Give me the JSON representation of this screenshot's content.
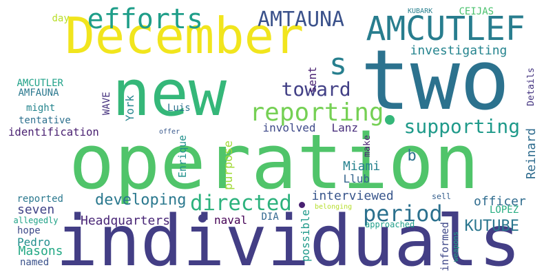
{
  "words": [
    {
      "text": "operation",
      "color": "#50c46a",
      "rot": 0
    },
    {
      "text": "individuals",
      "color": "#433e85",
      "rot": 0
    },
    {
      "text": "new",
      "color": "#35b779",
      "rot": 0
    },
    {
      "text": "two",
      "color": "#2c728e",
      "rot": 0
    },
    {
      "text": "December",
      "color": "#f1e51d",
      "rot": 0
    },
    {
      "text": "AMCUTLEF",
      "color": "#287d8e",
      "rot": 0
    },
    {
      "text": "efforts",
      "color": "#1f9e89",
      "rot": 0
    },
    {
      "text": "s",
      "color": "#277f8e",
      "rot": 0
    },
    {
      "text": "AMTAUNA",
      "color": "#3b528b",
      "rot": 0
    },
    {
      "text": "reporting",
      "color": "#75d054",
      "rot": 0
    },
    {
      "text": "supporting",
      "color": "#1f9a8a",
      "rot": 0
    },
    {
      "text": "toward",
      "color": "#424086",
      "rot": 0
    },
    {
      "text": "investigating",
      "color": "#25848e",
      "rot": 0
    },
    {
      "text": "period",
      "color": "#2c718e",
      "rot": 0
    },
    {
      "text": "directed",
      "color": "#2db27d",
      "rot": 0
    },
    {
      "text": "developing",
      "color": "#2a788e",
      "rot": 0
    },
    {
      "text": "b",
      "color": "#2c728e",
      "rot": 0
    },
    {
      "text": "KUTUBE",
      "color": "#2a768e",
      "rot": 0
    },
    {
      "text": "Miami",
      "color": "#26828e",
      "rot": 0
    },
    {
      "text": "Llub",
      "color": "#33638d",
      "rot": 0
    },
    {
      "text": "interviewed",
      "color": "#39568c",
      "rot": 0
    },
    {
      "text": "Headquarters",
      "color": "#482576",
      "rot": 0
    },
    {
      "text": "seven",
      "color": "#414487",
      "rot": 0
    },
    {
      "text": "Masons",
      "color": "#22a884",
      "rot": 0
    },
    {
      "text": "involved",
      "color": "#3e4989",
      "rot": 0
    },
    {
      "text": "Lanz",
      "color": "#472d7b",
      "rot": 0
    },
    {
      "text": "naval",
      "color": "#440154",
      "rot": 0
    },
    {
      "text": "AMCUTLER",
      "color": "#1fa188",
      "rot": 0
    },
    {
      "text": "AMFAUNA",
      "color": "#2a788e",
      "rot": 0
    },
    {
      "text": "identification",
      "color": "#481f70",
      "rot": 0
    },
    {
      "text": "tentative",
      "color": "#2d708e",
      "rot": 0
    },
    {
      "text": "might",
      "color": "#25858e",
      "rot": 0
    },
    {
      "text": "officer",
      "color": "#2f6c8e",
      "rot": 0
    },
    {
      "text": "LOPEZ",
      "color": "#26ad81",
      "rot": 0
    },
    {
      "text": "Pedro",
      "color": "#218e8d",
      "rot": 0
    },
    {
      "text": "hope",
      "color": "#3e4a89",
      "rot": 0
    },
    {
      "text": "named",
      "color": "#3b528b",
      "rot": 0
    },
    {
      "text": "reported",
      "color": "#2a788e",
      "rot": 0
    },
    {
      "text": "Luis",
      "color": "#2c728e",
      "rot": 0
    },
    {
      "text": "CEIJAS",
      "color": "#4ac16d",
      "rot": 0
    },
    {
      "text": "day",
      "color": "#b8de29",
      "rot": 0
    },
    {
      "text": "KUBARK",
      "color": "#277f8e",
      "rot": 0
    },
    {
      "text": "DIA",
      "color": "#31678e",
      "rot": 0
    },
    {
      "text": "allegedly",
      "color": "#1fa287",
      "rot": 0
    },
    {
      "text": "offer",
      "color": "#38588c",
      "rot": 0
    },
    {
      "text": "approached",
      "color": "#1f9e89",
      "rot": 0
    },
    {
      "text": "belonging",
      "color": "#b5de2b",
      "rot": 0
    },
    {
      "text": "sell",
      "color": "#355f8d",
      "rot": 0
    },
    {
      "text": "sent",
      "color": "#482071",
      "rot": -90
    },
    {
      "text": "Details",
      "color": "#453581",
      "rot": -90
    },
    {
      "text": "York",
      "color": "#25858e",
      "rot": -90
    },
    {
      "text": "WAVE",
      "color": "#46327e",
      "rot": -90
    },
    {
      "text": "purpose",
      "color": "#a2da37",
      "rot": -90
    },
    {
      "text": "Enrique",
      "color": "#21918c",
      "rot": -90
    },
    {
      "text": "make",
      "color": "#481f70",
      "rot": -90
    },
    {
      "text": "Reinard",
      "color": "#2f6c8e",
      "rot": -90
    },
    {
      "text": "possible",
      "color": "#1f9a8a",
      "rot": -90
    },
    {
      "text": "informed",
      "color": "#3f4889",
      "rot": -90
    },
    {
      "text": "weapons",
      "color": "#20a386",
      "rot": -90
    }
  ]
}
